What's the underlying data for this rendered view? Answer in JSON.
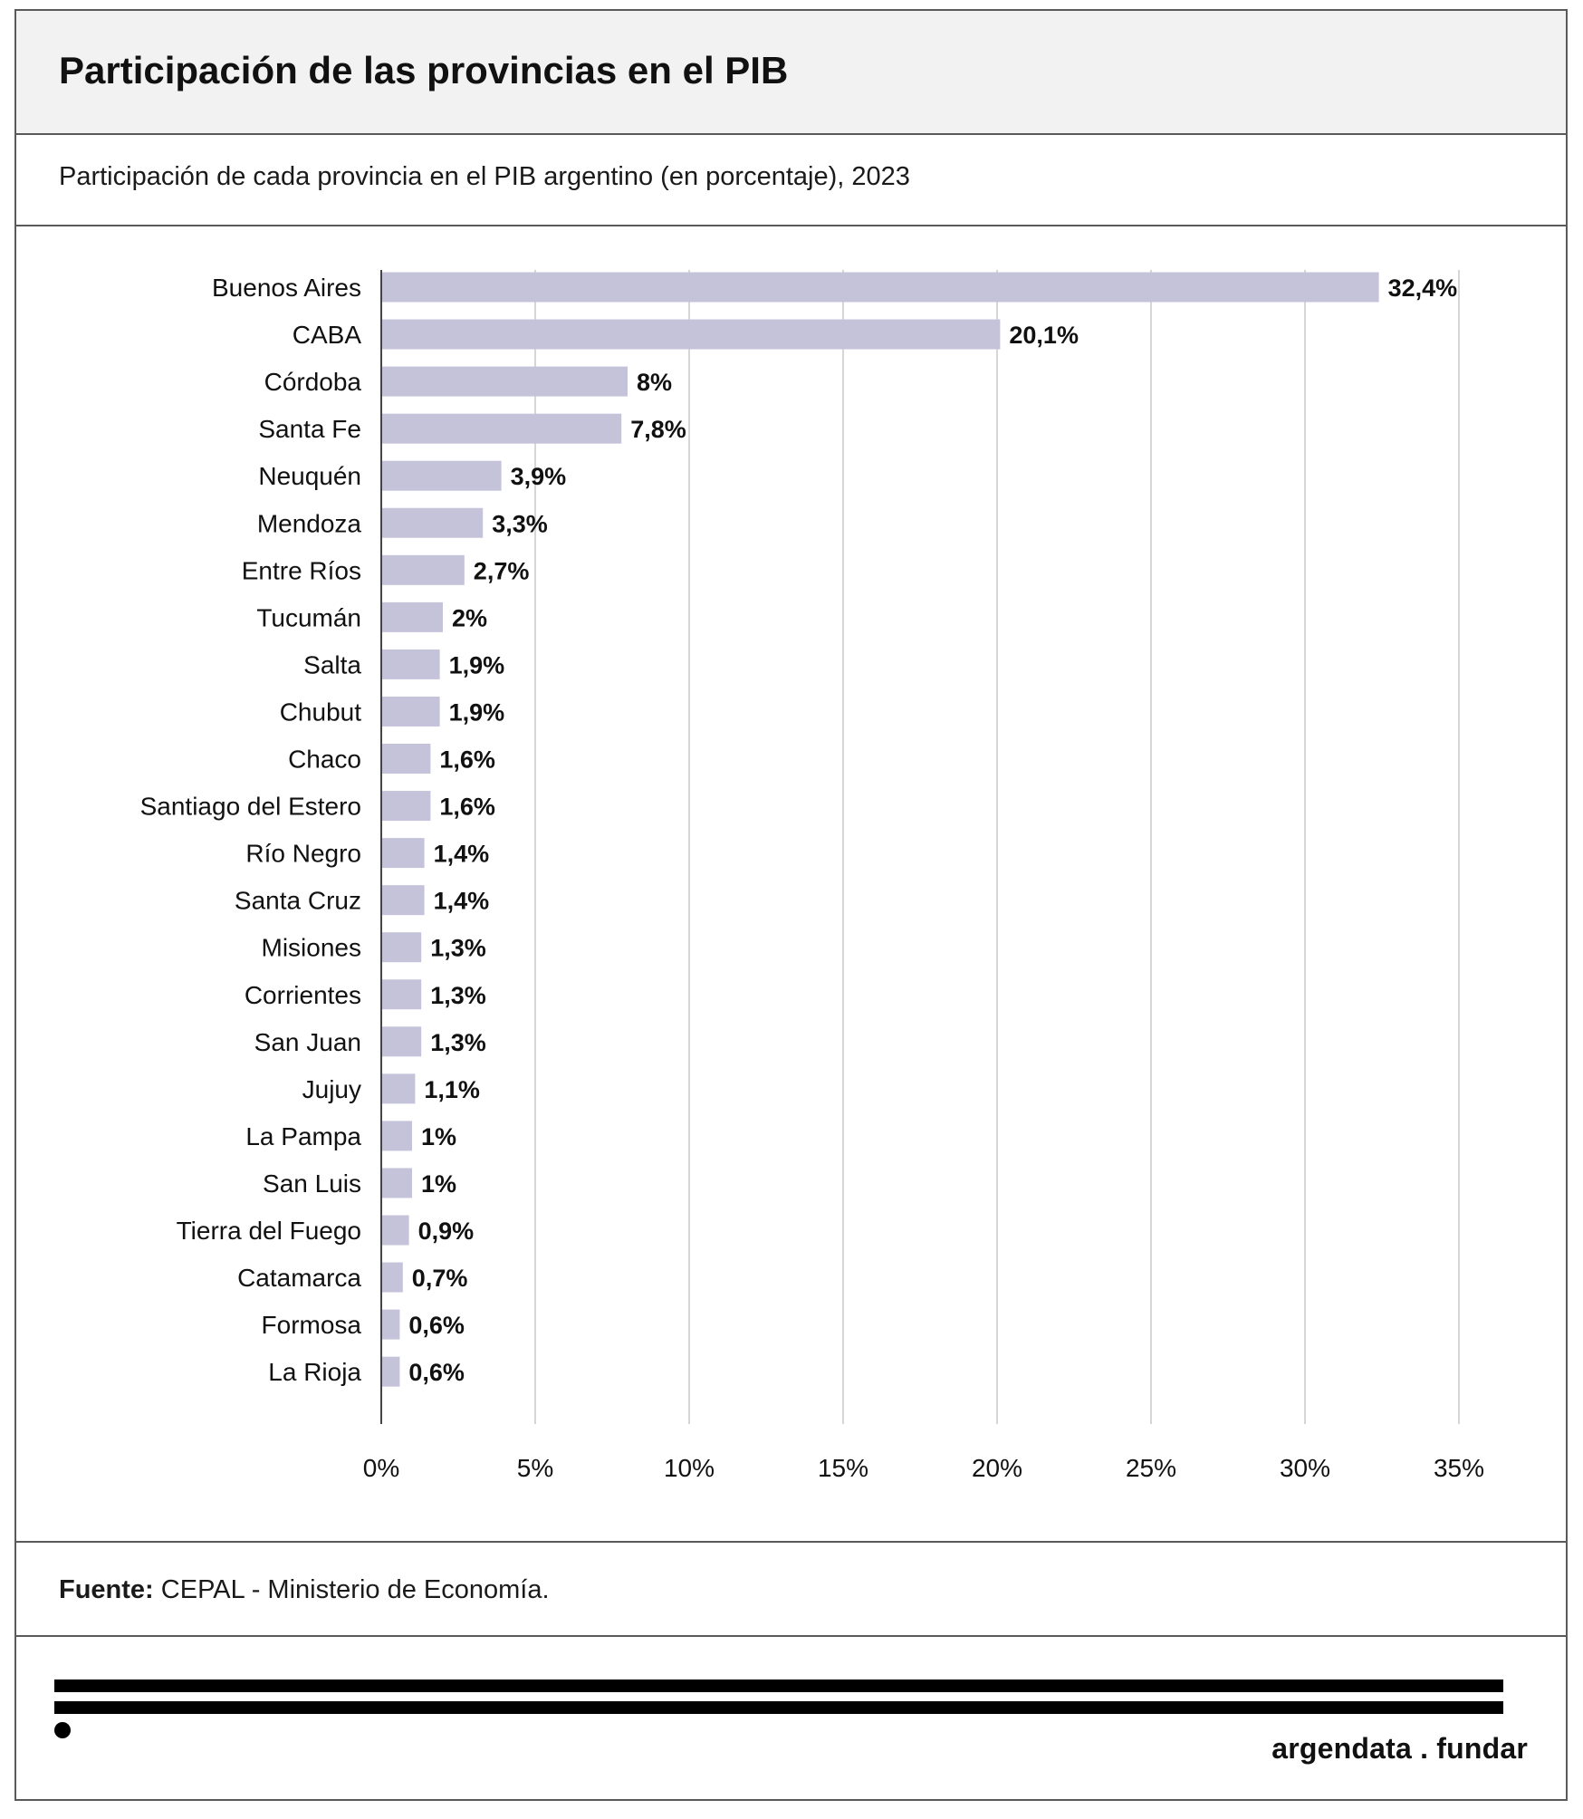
{
  "header": {
    "title": "Participación de las provincias en el PIB"
  },
  "subtitle": "Participación de cada provincia en el PIB argentino (en porcentaje), 2023",
  "source": {
    "label": "Fuente:",
    "text": "CEPAL - Ministerio de Economía."
  },
  "brand": {
    "left": "argendata",
    "sep": ".",
    "right": "fundar"
  },
  "colors": {
    "bar": "#c5c3da",
    "grid": "#c8c8c8",
    "axis": "#444444",
    "text": "#111111"
  },
  "chart_data": {
    "type": "bar",
    "orientation": "horizontal",
    "categories": [
      "Buenos Aires",
      "CABA",
      "Córdoba",
      "Santa Fe",
      "Neuquén",
      "Mendoza",
      "Entre Ríos",
      "Tucumán",
      "Salta",
      "Chubut",
      "Chaco",
      "Santiago del Estero",
      "Río Negro",
      "Santa Cruz",
      "Misiones",
      "Corrientes",
      "San Juan",
      "Jujuy",
      "La Pampa",
      "San Luis",
      "Tierra del Fuego",
      "Catamarca",
      "Formosa",
      "La Rioja"
    ],
    "values": [
      32.4,
      20.1,
      8.0,
      7.8,
      3.9,
      3.3,
      2.7,
      2.0,
      1.9,
      1.9,
      1.6,
      1.6,
      1.4,
      1.4,
      1.3,
      1.3,
      1.3,
      1.1,
      1.0,
      1.0,
      0.9,
      0.7,
      0.6,
      0.6
    ],
    "value_labels": [
      "32,4%",
      "20,1%",
      "8%",
      "7,8%",
      "3,9%",
      "3,3%",
      "2,7%",
      "2%",
      "1,9%",
      "1,9%",
      "1,6%",
      "1,6%",
      "1,4%",
      "1,4%",
      "1,3%",
      "1,3%",
      "1,3%",
      "1,1%",
      "1%",
      "1%",
      "0,9%",
      "0,7%",
      "0,6%",
      "0,6%"
    ],
    "xlim": [
      0,
      35
    ],
    "xticks": [
      0,
      5,
      10,
      15,
      20,
      25,
      30,
      35
    ],
    "xtick_labels": [
      "0%",
      "5%",
      "10%",
      "15%",
      "20%",
      "25%",
      "30%",
      "35%"
    ],
    "grid": true,
    "xlabel": "",
    "ylabel": ""
  }
}
